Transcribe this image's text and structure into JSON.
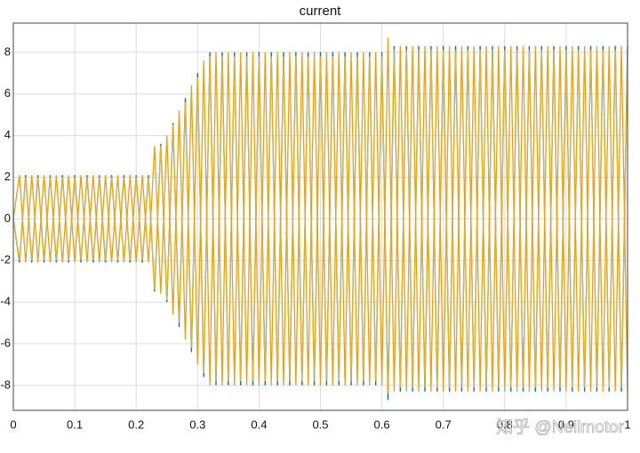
{
  "chart_data": {
    "type": "line",
    "title": "current",
    "watermark": "知乎 @Neilmotor",
    "x": [
      0,
      0.01,
      0.02,
      0.03,
      0.04,
      0.05,
      0.06,
      0.07,
      0.08,
      0.09,
      0.1,
      0.11,
      0.12,
      0.13,
      0.14,
      0.15,
      0.16,
      0.17,
      0.18,
      0.19,
      0.2,
      0.21,
      0.22,
      0.23,
      0.24,
      0.25,
      0.26,
      0.27,
      0.28,
      0.29,
      0.3,
      0.31,
      0.32,
      0.33,
      0.34,
      0.35,
      0.36,
      0.37,
      0.38,
      0.39,
      0.4,
      0.41,
      0.42,
      0.43,
      0.44,
      0.45,
      0.46,
      0.47,
      0.48,
      0.49,
      0.5,
      0.51,
      0.52,
      0.53,
      0.54,
      0.55,
      0.56,
      0.57,
      0.58,
      0.59,
      0.6,
      0.61,
      0.62,
      0.63,
      0.64,
      0.65,
      0.66,
      0.67,
      0.68,
      0.69,
      0.7,
      0.71,
      0.72,
      0.73,
      0.74,
      0.75,
      0.76,
      0.77,
      0.78,
      0.79,
      0.8,
      0.81,
      0.82,
      0.83,
      0.84,
      0.85,
      0.86,
      0.87,
      0.88,
      0.89,
      0.9,
      0.91,
      0.92,
      0.93,
      0.94,
      0.95,
      0.96,
      0.97,
      0.98,
      0.99,
      1
    ],
    "series": [
      {
        "color": "#0072bd",
        "values": [
          0,
          -2.1,
          2.1,
          -2.1,
          2.1,
          -2.1,
          2.1,
          -2.1,
          2.1,
          -2.1,
          2.1,
          -2.1,
          2.1,
          -2.1,
          2.1,
          -2.1,
          2.1,
          -2.1,
          2.1,
          -2.1,
          2.1,
          -2.1,
          2.1,
          -3.5,
          3.6,
          -4.0,
          4.6,
          -5.2,
          5.8,
          -6.4,
          7.0,
          -7.6,
          8.0,
          -8,
          8,
          -8,
          8,
          -8,
          8,
          -8,
          8,
          -8,
          8,
          -8,
          8,
          -8,
          8,
          -8,
          8,
          -8,
          8,
          -8,
          8,
          -8,
          8,
          -8,
          8,
          -8,
          8,
          -8,
          8,
          -8.7,
          8.3,
          -8.3,
          8.3,
          -8.3,
          8.3,
          -8.3,
          8.3,
          -8.3,
          8.3,
          -8.3,
          8.3,
          -8.3,
          8.3,
          -8.3,
          8.3,
          -8.3,
          8.3,
          -8.3,
          8.3,
          -8.3,
          8.3,
          -8.3,
          8.3,
          -8.3,
          8.3,
          -8.3,
          8.3,
          -8.3,
          8.3,
          -8.3,
          8.3,
          -8.3,
          8.3,
          -8.3,
          8.3,
          -8.3,
          8.3,
          -8.3,
          8.3
        ]
      },
      {
        "color": "#edb120",
        "values": [
          0,
          -2.0,
          2.0,
          -2.0,
          2.0,
          -2.0,
          2.0,
          -2.0,
          2.0,
          -2.0,
          2.0,
          -2.0,
          2.0,
          -2.0,
          2.0,
          -2.0,
          2.0,
          -2.0,
          2.0,
          -2.0,
          2.0,
          -2.0,
          2.0,
          -3.4,
          3.5,
          -3.9,
          4.5,
          -5.0,
          5.6,
          -6.2,
          6.8,
          -7.4,
          7.8,
          -7.8,
          7.8,
          -7.8,
          7.8,
          -7.8,
          7.8,
          -7.8,
          7.8,
          -7.8,
          7.8,
          -7.8,
          7.8,
          -7.8,
          7.8,
          -7.8,
          7.8,
          -7.8,
          7.8,
          -7.8,
          7.8,
          -7.8,
          7.8,
          -7.8,
          7.8,
          -7.8,
          7.8,
          -7.8,
          7.8,
          -8.4,
          8.1,
          -8.1,
          8.1,
          -8.1,
          8.1,
          -8.1,
          8.1,
          -8.1,
          8.1,
          -8.1,
          8.1,
          -8.1,
          8.1,
          -8.1,
          8.1,
          -8.1,
          8.1,
          -8.1,
          8.1,
          -8.1,
          8.1,
          -8.1,
          8.1,
          -8.1,
          8.1,
          -8.1,
          8.1,
          -8.1,
          8.1,
          -8.1,
          8.1,
          -8.1,
          8.1,
          -8.1,
          8.1,
          -8.1,
          8.1,
          -8.1,
          8.1
        ]
      },
      {
        "color": "#f39c12",
        "values": [
          0,
          2.1,
          -2.1,
          2.1,
          -2.1,
          2.1,
          -2.1,
          2.1,
          -2.1,
          2.1,
          -2.1,
          2.1,
          -2.1,
          2.1,
          -2.1,
          2.1,
          -2.1,
          2.1,
          -2.1,
          2.1,
          -2.1,
          2.1,
          -2.1,
          3.5,
          -3.6,
          4.0,
          -4.6,
          5.2,
          -5.8,
          6.4,
          -7.0,
          7.6,
          -8.0,
          8,
          -8,
          8,
          -8,
          8,
          -8,
          8,
          -8,
          8,
          -8,
          8,
          -8,
          8,
          -8,
          8,
          -8,
          8,
          -8,
          8,
          -8,
          8,
          -8,
          8,
          -8,
          8,
          -8,
          8,
          -8,
          8.7,
          -8.3,
          8.3,
          -8.3,
          8.3,
          -8.3,
          8.3,
          -8.3,
          8.3,
          -8.3,
          8.3,
          -8.3,
          8.3,
          -8.3,
          8.3,
          -8.3,
          8.3,
          -8.3,
          8.3,
          -8.3,
          8.3,
          -8.3,
          8.3,
          -8.3,
          8.3,
          -8.3,
          8.3,
          -8.3,
          8.3,
          -8.3,
          8.3,
          -8.3,
          8.3,
          -8.3,
          8.3,
          -8.3,
          8.3,
          -8.3,
          8.3,
          -8.3
        ]
      }
    ],
    "xlim": [
      0,
      1
    ],
    "xticks": [
      0,
      0.1,
      0.2,
      0.3,
      0.4,
      0.5,
      0.6,
      0.7,
      0.8,
      0.9,
      1
    ],
    "ylim": [
      -9.2,
      9.4
    ],
    "yticks": [
      -8,
      -6,
      -4,
      -2,
      0,
      2,
      4,
      6,
      8
    ],
    "grid": true
  }
}
